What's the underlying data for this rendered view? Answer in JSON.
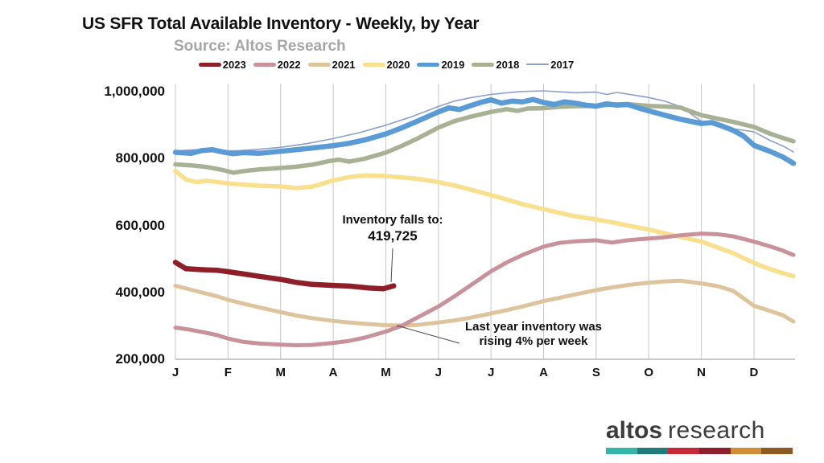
{
  "title": "US SFR Total Available Inventory - Weekly, by Year",
  "subtitle": "Source: Altos Research",
  "annotations": {
    "fall": {
      "line1": "Inventory falls to:",
      "line2": "419,725"
    },
    "last_year": {
      "line1": "Last year inventory was",
      "line2": "rising 4% per week"
    }
  },
  "logo": {
    "bold": "altos",
    "light": "research",
    "bar_colors": [
      "#35b5aa",
      "#207c7c",
      "#c42a38",
      "#8e1f2e",
      "#cf8e35",
      "#8d5a24"
    ]
  },
  "chart_data": {
    "type": "line",
    "title": "US SFR Total Available Inventory - Weekly, by Year",
    "source": "Altos Research",
    "x_unit": "month (0 = January, weekly data)",
    "x_ticks": [
      "J",
      "F",
      "M",
      "A",
      "M",
      "J",
      "J",
      "A",
      "S",
      "O",
      "N",
      "D"
    ],
    "y_ticks": [
      {
        "value": 1000000,
        "label": "1,000,000"
      },
      {
        "value": 800000,
        "label": "800,000"
      },
      {
        "value": 600000,
        "label": "600,000"
      },
      {
        "value": 400000,
        "label": "400,000"
      },
      {
        "value": 200000,
        "label": "200,000"
      }
    ],
    "ylim": [
      200000,
      1010000
    ],
    "grid": "vertical-only",
    "legend_position": "top",
    "highlight_value": 419725,
    "series": [
      {
        "name": "2023",
        "color": "#8e1f28",
        "line_width": 6.5,
        "points": [
          [
            0,
            490000
          ],
          [
            0.2,
            471000
          ],
          [
            0.5,
            468000
          ],
          [
            0.8,
            466000
          ],
          [
            1,
            462000
          ],
          [
            1.3,
            455000
          ],
          [
            1.6,
            448000
          ],
          [
            2,
            439000
          ],
          [
            2.3,
            430000
          ],
          [
            2.6,
            424000
          ],
          [
            3,
            421000
          ],
          [
            3.3,
            419000
          ],
          [
            3.5,
            416000
          ],
          [
            3.7,
            413000
          ],
          [
            3.95,
            411000
          ],
          [
            4.15,
            419725
          ]
        ]
      },
      {
        "name": "2022",
        "color": "#c9929a",
        "line_width": 5,
        "points": [
          [
            0,
            295000
          ],
          [
            0.3,
            288000
          ],
          [
            0.5,
            282000
          ],
          [
            0.8,
            272000
          ],
          [
            1,
            262000
          ],
          [
            1.3,
            252000
          ],
          [
            1.6,
            247000
          ],
          [
            2,
            244000
          ],
          [
            2.3,
            242000
          ],
          [
            2.6,
            243000
          ],
          [
            3,
            249000
          ],
          [
            3.3,
            255000
          ],
          [
            3.6,
            265000
          ],
          [
            4,
            283000
          ],
          [
            4.3,
            300000
          ],
          [
            4.6,
            325000
          ],
          [
            5,
            358000
          ],
          [
            5.3,
            388000
          ],
          [
            5.6,
            420000
          ],
          [
            6,
            463000
          ],
          [
            6.3,
            490000
          ],
          [
            6.6,
            512000
          ],
          [
            7,
            537000
          ],
          [
            7.3,
            548000
          ],
          [
            7.6,
            553000
          ],
          [
            8,
            556000
          ],
          [
            8.3,
            549000
          ],
          [
            8.6,
            556000
          ],
          [
            9,
            561000
          ],
          [
            9.3,
            565000
          ],
          [
            9.6,
            571000
          ],
          [
            10,
            576000
          ],
          [
            10.3,
            574000
          ],
          [
            10.6,
            568000
          ],
          [
            11,
            552000
          ],
          [
            11.3,
            538000
          ],
          [
            11.55,
            525000
          ],
          [
            11.75,
            512000
          ]
        ]
      },
      {
        "name": "2021",
        "color": "#ddc49d",
        "line_width": 5,
        "points": [
          [
            0,
            420000
          ],
          [
            0.3,
            408000
          ],
          [
            0.5,
            400000
          ],
          [
            0.8,
            388000
          ],
          [
            1,
            378000
          ],
          [
            1.3,
            366000
          ],
          [
            1.6,
            355000
          ],
          [
            2,
            341000
          ],
          [
            2.3,
            331000
          ],
          [
            2.6,
            323000
          ],
          [
            3,
            315000
          ],
          [
            3.3,
            310000
          ],
          [
            3.6,
            306000
          ],
          [
            4,
            302000
          ],
          [
            4.3,
            301000
          ],
          [
            4.6,
            303000
          ],
          [
            5,
            310000
          ],
          [
            5.3,
            316000
          ],
          [
            5.6,
            324000
          ],
          [
            6,
            337000
          ],
          [
            6.3,
            347000
          ],
          [
            6.6,
            358000
          ],
          [
            7,
            374000
          ],
          [
            7.3,
            384000
          ],
          [
            7.6,
            394000
          ],
          [
            8,
            407000
          ],
          [
            8.3,
            415000
          ],
          [
            8.6,
            422000
          ],
          [
            9,
            429000
          ],
          [
            9.3,
            433000
          ],
          [
            9.6,
            435000
          ],
          [
            10,
            427000
          ],
          [
            10.3,
            419000
          ],
          [
            10.6,
            405000
          ],
          [
            11,
            360000
          ],
          [
            11.2,
            350000
          ],
          [
            11.55,
            332000
          ],
          [
            11.75,
            313000
          ]
        ]
      },
      {
        "name": "2020",
        "color": "#f8e08e",
        "line_width": 5.5,
        "points": [
          [
            0,
            763000
          ],
          [
            0.2,
            738000
          ],
          [
            0.4,
            730000
          ],
          [
            0.6,
            734000
          ],
          [
            0.8,
            730000
          ],
          [
            1,
            726000
          ],
          [
            1.3,
            722000
          ],
          [
            1.6,
            719000
          ],
          [
            2,
            717000
          ],
          [
            2.3,
            712000
          ],
          [
            2.6,
            716000
          ],
          [
            3,
            735000
          ],
          [
            3.3,
            745000
          ],
          [
            3.6,
            750000
          ],
          [
            4,
            748000
          ],
          [
            4.3,
            744000
          ],
          [
            4.6,
            740000
          ],
          [
            5,
            730000
          ],
          [
            5.3,
            720000
          ],
          [
            5.6,
            708000
          ],
          [
            6,
            691000
          ],
          [
            6.3,
            678000
          ],
          [
            6.6,
            664000
          ],
          [
            7,
            649000
          ],
          [
            7.3,
            638000
          ],
          [
            7.6,
            628000
          ],
          [
            8,
            618000
          ],
          [
            8.3,
            610000
          ],
          [
            8.6,
            600000
          ],
          [
            9,
            588000
          ],
          [
            9.3,
            577000
          ],
          [
            9.6,
            566000
          ],
          [
            10,
            552000
          ],
          [
            10.3,
            535000
          ],
          [
            10.6,
            518000
          ],
          [
            11,
            488000
          ],
          [
            11.3,
            470000
          ],
          [
            11.55,
            458000
          ],
          [
            11.75,
            448000
          ]
        ]
      },
      {
        "name": "2019",
        "color": "#5b9bd5",
        "line_width": 6.5,
        "points": [
          [
            0,
            819000
          ],
          [
            0.3,
            816000
          ],
          [
            0.5,
            824000
          ],
          [
            0.7,
            827000
          ],
          [
            0.9,
            820000
          ],
          [
            1.1,
            815000
          ],
          [
            1.3,
            818000
          ],
          [
            1.6,
            816000
          ],
          [
            2,
            822000
          ],
          [
            2.3,
            827000
          ],
          [
            2.6,
            832000
          ],
          [
            3,
            839000
          ],
          [
            3.3,
            846000
          ],
          [
            3.6,
            856000
          ],
          [
            4,
            874000
          ],
          [
            4.3,
            892000
          ],
          [
            4.6,
            912000
          ],
          [
            5,
            940000
          ],
          [
            5.2,
            952000
          ],
          [
            5.4,
            947000
          ],
          [
            5.6,
            958000
          ],
          [
            5.8,
            968000
          ],
          [
            6,
            976000
          ],
          [
            6.2,
            966000
          ],
          [
            6.4,
            972000
          ],
          [
            6.6,
            970000
          ],
          [
            6.8,
            977000
          ],
          [
            7,
            968000
          ],
          [
            7.2,
            962000
          ],
          [
            7.4,
            970000
          ],
          [
            7.6,
            966000
          ],
          [
            7.8,
            960000
          ],
          [
            8,
            957000
          ],
          [
            8.2,
            964000
          ],
          [
            8.4,
            960000
          ],
          [
            8.6,
            962000
          ],
          [
            8.8,
            952000
          ],
          [
            9,
            943000
          ],
          [
            9.3,
            930000
          ],
          [
            9.6,
            918000
          ],
          [
            10,
            905000
          ],
          [
            10.2,
            908000
          ],
          [
            10.4,
            897000
          ],
          [
            10.6,
            885000
          ],
          [
            10.8,
            868000
          ],
          [
            11,
            840000
          ],
          [
            11.3,
            822000
          ],
          [
            11.55,
            805000
          ],
          [
            11.75,
            786000
          ]
        ]
      },
      {
        "name": "2018",
        "color": "#a7b295",
        "line_width": 5.5,
        "points": [
          [
            0,
            783000
          ],
          [
            0.3,
            780000
          ],
          [
            0.6,
            775000
          ],
          [
            0.9,
            766000
          ],
          [
            1.1,
            758000
          ],
          [
            1.3,
            763000
          ],
          [
            1.6,
            768000
          ],
          [
            2,
            772000
          ],
          [
            2.3,
            776000
          ],
          [
            2.6,
            782000
          ],
          [
            2.9,
            792000
          ],
          [
            3.1,
            797000
          ],
          [
            3.3,
            791000
          ],
          [
            3.6,
            800000
          ],
          [
            4,
            818000
          ],
          [
            4.3,
            838000
          ],
          [
            4.6,
            860000
          ],
          [
            5,
            893000
          ],
          [
            5.3,
            912000
          ],
          [
            5.6,
            925000
          ],
          [
            6,
            940000
          ],
          [
            6.3,
            948000
          ],
          [
            6.5,
            943000
          ],
          [
            6.7,
            950000
          ],
          [
            7,
            951000
          ],
          [
            7.3,
            955000
          ],
          [
            7.6,
            957000
          ],
          [
            8,
            958000
          ],
          [
            8.3,
            962000
          ],
          [
            8.6,
            963000
          ],
          [
            9,
            958000
          ],
          [
            9.3,
            956000
          ],
          [
            9.6,
            953000
          ],
          [
            10,
            930000
          ],
          [
            10.3,
            920000
          ],
          [
            10.6,
            910000
          ],
          [
            11,
            895000
          ],
          [
            11.3,
            875000
          ],
          [
            11.55,
            862000
          ],
          [
            11.75,
            852000
          ]
        ]
      },
      {
        "name": "2017",
        "color": "#8d9fce",
        "line_width": 1.6,
        "points": [
          [
            0,
            823000
          ],
          [
            0.3,
            826000
          ],
          [
            0.6,
            828000
          ],
          [
            0.9,
            823000
          ],
          [
            1.2,
            824000
          ],
          [
            1.5,
            827000
          ],
          [
            2,
            834000
          ],
          [
            2.5,
            845000
          ],
          [
            3,
            860000
          ],
          [
            3.5,
            878000
          ],
          [
            4,
            900000
          ],
          [
            4.5,
            926000
          ],
          [
            5,
            956000
          ],
          [
            5.3,
            972000
          ],
          [
            5.6,
            982000
          ],
          [
            6,
            992000
          ],
          [
            6.3,
            997000
          ],
          [
            6.6,
            1001000
          ],
          [
            7,
            1003000
          ],
          [
            7.3,
            1000000
          ],
          [
            7.6,
            997000
          ],
          [
            8,
            999000
          ],
          [
            8.2,
            992000
          ],
          [
            8.4,
            998000
          ],
          [
            8.6,
            993000
          ],
          [
            9,
            983000
          ],
          [
            9.3,
            972000
          ],
          [
            9.6,
            956000
          ],
          [
            10,
            912000
          ],
          [
            10.3,
            900000
          ],
          [
            10.6,
            890000
          ],
          [
            11,
            880000
          ],
          [
            11.3,
            855000
          ],
          [
            11.55,
            838000
          ],
          [
            11.75,
            820000
          ]
        ]
      }
    ]
  }
}
